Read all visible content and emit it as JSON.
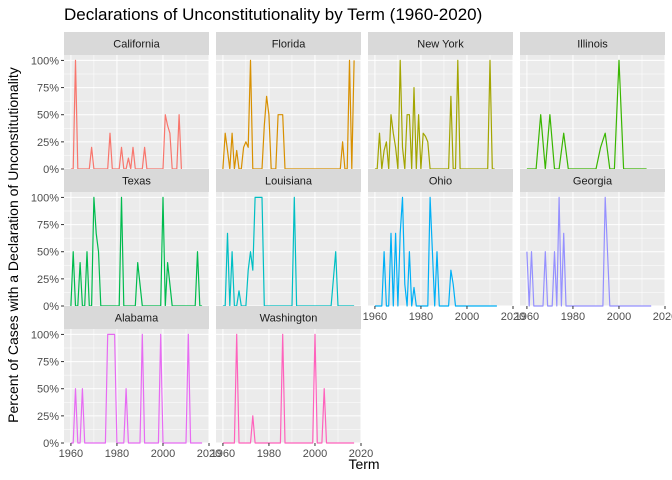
{
  "chart_data": {
    "type": "line",
    "title": "Declarations of Unconstitutionality by Term (1960-2020)",
    "xlabel": "Term",
    "ylabel": "Percent of Cases with a Declaration of Unconstitutionality",
    "xlim": [
      1957,
      2020
    ],
    "ylim": [
      0,
      1.05
    ],
    "x_ticks": [
      1960,
      1980,
      2000,
      2020
    ],
    "x_tick_labels": [
      "1960",
      "1980",
      "2000",
      "2020"
    ],
    "y_ticks": [
      0,
      0.25,
      0.5,
      0.75,
      1.0
    ],
    "y_tick_labels": [
      "0%",
      "25%",
      "50%",
      "75%",
      "100%"
    ],
    "grid": true,
    "legend": "none",
    "series": [
      {
        "name": "California",
        "color": "#F8766D",
        "x": [
          1960,
          1961,
          1962,
          1963,
          1964,
          1965,
          1966,
          1967,
          1968,
          1969,
          1970,
          1971,
          1972,
          1973,
          1974,
          1975,
          1976,
          1977,
          1978,
          1979,
          1980,
          1981,
          1982,
          1983,
          1984,
          1985,
          1986,
          1987,
          1988,
          1989,
          1990,
          1991,
          1992,
          1993,
          1994,
          1995,
          1996,
          1997,
          1998,
          1999,
          2000,
          2001,
          2002,
          2003,
          2004,
          2005,
          2006,
          2007,
          2008
        ],
        "y": [
          0,
          0,
          1.0,
          0,
          0,
          0,
          0,
          0,
          0,
          0.2,
          0,
          0,
          0,
          0,
          0,
          0,
          0,
          0.33,
          0,
          0,
          0,
          0,
          0.2,
          0,
          0,
          0.1,
          0,
          0.2,
          0,
          0,
          0,
          0,
          0.2,
          0,
          0,
          0,
          0,
          0,
          0,
          0,
          0,
          0.5,
          0.4,
          0.33,
          0,
          0,
          0,
          0.5,
          0
        ]
      },
      {
        "name": "Florida",
        "color": "#D89000",
        "x": [
          1960,
          1961,
          1962,
          1963,
          1964,
          1965,
          1966,
          1967,
          1968,
          1969,
          1970,
          1971,
          1972,
          1973,
          1974,
          1975,
          1976,
          1977,
          1978,
          1979,
          1980,
          1981,
          1982,
          1983,
          1984,
          1985,
          1986,
          1987,
          1988,
          1989,
          1990,
          1991,
          1992,
          1993,
          1994,
          1995,
          1996,
          1997,
          1998,
          1999,
          2000,
          2001,
          2002,
          2003,
          2004,
          2005,
          2006,
          2007,
          2008,
          2009,
          2010,
          2011,
          2012,
          2013,
          2014,
          2015,
          2016,
          2017
        ],
        "y": [
          0,
          0.33,
          0.17,
          0,
          0.33,
          0,
          0.17,
          0,
          0,
          0.2,
          0.25,
          0.2,
          1.0,
          0,
          0,
          0,
          0,
          0,
          0.4,
          0.67,
          0.5,
          0,
          0,
          0,
          0.5,
          0.5,
          0.5,
          0,
          0,
          0,
          0,
          0,
          0,
          0,
          0,
          0,
          0,
          0,
          0,
          0,
          0,
          0,
          0,
          0,
          0,
          0,
          0,
          0,
          0,
          0,
          0,
          0,
          0.25,
          0,
          0,
          1.0,
          0,
          1.0
        ]
      },
      {
        "name": "New York",
        "color": "#A3A500",
        "x": [
          1960,
          1961,
          1962,
          1963,
          1964,
          1965,
          1966,
          1967,
          1968,
          1969,
          1970,
          1971,
          1972,
          1973,
          1974,
          1975,
          1976,
          1977,
          1978,
          1979,
          1980,
          1981,
          1982,
          1983,
          1984,
          1985,
          1986,
          1987,
          1988,
          1989,
          1990,
          1991,
          1992,
          1993,
          1994,
          1995,
          1996,
          1997,
          1998,
          1999,
          2000,
          2001,
          2002,
          2003,
          2004,
          2005,
          2006,
          2007,
          2008,
          2009,
          2010,
          2011,
          2012
        ],
        "y": [
          0,
          0,
          0.33,
          0,
          0.17,
          0.25,
          0,
          0.5,
          0.33,
          0.2,
          0,
          1.0,
          0.2,
          0,
          0.5,
          0.5,
          0,
          0.75,
          0,
          0.5,
          0,
          0.33,
          0.3,
          0.25,
          0,
          0,
          0,
          0,
          0,
          0,
          0,
          0,
          0,
          0.67,
          0,
          0,
          1.0,
          0,
          0,
          0,
          0,
          0,
          0,
          0,
          0,
          0,
          0,
          0,
          0,
          0,
          1.0,
          0,
          0
        ]
      },
      {
        "name": "Illinois",
        "color": "#39B600",
        "x": [
          1960,
          1962,
          1964,
          1966,
          1968,
          1970,
          1972,
          1974,
          1976,
          1978,
          1980,
          1982,
          1984,
          1986,
          1988,
          1990,
          1992,
          1994,
          1996,
          1998,
          2000,
          2002,
          2004,
          2006,
          2008,
          2010,
          2012
        ],
        "y": [
          0,
          0,
          0,
          0.5,
          0,
          0.5,
          0,
          0,
          0.33,
          0,
          0,
          0,
          0,
          0,
          0,
          0,
          0.2,
          0.33,
          0,
          0,
          1.0,
          0,
          0,
          0,
          0,
          0,
          0
        ]
      },
      {
        "name": "Texas",
        "color": "#00BB4E",
        "x": [
          1960,
          1961,
          1962,
          1963,
          1964,
          1965,
          1966,
          1967,
          1968,
          1969,
          1970,
          1971,
          1972,
          1973,
          1974,
          1975,
          1976,
          1977,
          1978,
          1979,
          1980,
          1981,
          1982,
          1983,
          1984,
          1985,
          1986,
          1987,
          1988,
          1989,
          1990,
          1991,
          1992,
          1993,
          1994,
          1995,
          1996,
          1997,
          1998,
          1999,
          2000,
          2001,
          2002,
          2003,
          2004,
          2005,
          2006,
          2007,
          2008,
          2009,
          2010,
          2011,
          2012,
          2013,
          2014,
          2015,
          2016,
          2017
        ],
        "y": [
          0,
          0.5,
          0,
          0,
          0.4,
          0,
          0,
          0.5,
          0,
          0,
          1.0,
          0.67,
          0.5,
          0,
          0,
          0,
          0,
          0,
          0,
          0,
          0,
          0,
          1.0,
          0,
          0,
          0,
          0,
          0,
          0,
          0.4,
          0.2,
          0,
          0,
          0,
          0,
          0,
          0,
          0,
          0,
          0,
          1.0,
          0,
          0.4,
          0.2,
          0,
          0,
          0,
          0,
          0,
          0,
          0,
          0,
          0,
          0,
          0,
          0.5,
          0,
          0
        ]
      },
      {
        "name": "Louisiana",
        "color": "#00BFC4",
        "x": [
          1960,
          1961,
          1962,
          1963,
          1964,
          1965,
          1966,
          1967,
          1968,
          1969,
          1970,
          1971,
          1972,
          1973,
          1974,
          1975,
          1976,
          1977,
          1978,
          1979,
          1980,
          1981,
          1982,
          1983,
          1984,
          1985,
          1986,
          1987,
          1988,
          1989,
          1990,
          1991,
          1992,
          1993,
          1994,
          1995,
          1996,
          1997,
          1998,
          1999,
          2000,
          2001,
          2002,
          2003,
          2004,
          2005,
          2006,
          2007,
          2008,
          2009,
          2010,
          2011,
          2012,
          2013,
          2014,
          2015,
          2016,
          2017
        ],
        "y": [
          0,
          0,
          0.67,
          0,
          0.5,
          0,
          0,
          0.14,
          0,
          0,
          0,
          0.33,
          0.5,
          0.33,
          1.0,
          1.0,
          1.0,
          1.0,
          0,
          0,
          0,
          0,
          0,
          0,
          0,
          0,
          0,
          0,
          0,
          0,
          0,
          1.0,
          0,
          0,
          0,
          0,
          0,
          0,
          0,
          0,
          0,
          0,
          0,
          0,
          0,
          0,
          0,
          0,
          0.25,
          0.5,
          0,
          0,
          0,
          0,
          0,
          0,
          0,
          0
        ]
      },
      {
        "name": "Ohio",
        "color": "#00B0F6",
        "x": [
          1960,
          1961,
          1962,
          1963,
          1964,
          1965,
          1966,
          1967,
          1968,
          1969,
          1970,
          1971,
          1972,
          1973,
          1974,
          1975,
          1976,
          1977,
          1978,
          1979,
          1980,
          1981,
          1982,
          1983,
          1984,
          1985,
          1986,
          1987,
          1988,
          1989,
          1990,
          1991,
          1992,
          1993,
          1994,
          1995,
          1996,
          1997,
          1998,
          1999,
          2000,
          2001,
          2002,
          2003,
          2004,
          2005,
          2006,
          2007,
          2008,
          2009,
          2010,
          2011,
          2012,
          2013
        ],
        "y": [
          0,
          0,
          0,
          0,
          0.5,
          0,
          0,
          0.67,
          0,
          0.67,
          0,
          0.67,
          1.0,
          0.2,
          0,
          0.5,
          0,
          0.17,
          0,
          0,
          0,
          0,
          0,
          0,
          1.0,
          0.5,
          0,
          0.5,
          0,
          0,
          0,
          0,
          0,
          0.33,
          0.2,
          0,
          0,
          0,
          0,
          0,
          0,
          0,
          0,
          0,
          0,
          0,
          0,
          0,
          0,
          0,
          0,
          0,
          0,
          0
        ]
      },
      {
        "name": "Georgia",
        "color": "#9590FF",
        "x": [
          1960,
          1961,
          1962,
          1963,
          1964,
          1965,
          1966,
          1967,
          1968,
          1969,
          1970,
          1971,
          1972,
          1973,
          1974,
          1975,
          1976,
          1977,
          1978,
          1979,
          1980,
          1981,
          1982,
          1983,
          1984,
          1985,
          1986,
          1987,
          1988,
          1989,
          1990,
          1991,
          1992,
          1993,
          1994,
          1995,
          1996,
          1997,
          1998,
          1999,
          2000,
          2001,
          2002,
          2003,
          2004,
          2005,
          2006,
          2007,
          2008,
          2009,
          2010,
          2011,
          2012,
          2013,
          2014
        ],
        "y": [
          0.5,
          0,
          0.5,
          0,
          0,
          0,
          0,
          0,
          0.5,
          0,
          0,
          0,
          0.5,
          0,
          1.0,
          0,
          0.67,
          0,
          0,
          0,
          0,
          0,
          0,
          0,
          0,
          0,
          0,
          0,
          0,
          0,
          0,
          0,
          0,
          0,
          1.0,
          0.5,
          0,
          0,
          0,
          0,
          0,
          0,
          0,
          0,
          0,
          0,
          0,
          0,
          0,
          0,
          0,
          0,
          0,
          0,
          0
        ]
      },
      {
        "name": "Alabama",
        "color": "#E76BF3",
        "x": [
          1960,
          1961,
          1962,
          1963,
          1964,
          1965,
          1966,
          1967,
          1968,
          1969,
          1970,
          1971,
          1972,
          1973,
          1974,
          1975,
          1976,
          1977,
          1978,
          1979,
          1980,
          1981,
          1982,
          1983,
          1984,
          1985,
          1986,
          1987,
          1988,
          1989,
          1990,
          1991,
          1992,
          1993,
          1994,
          1995,
          1996,
          1997,
          1998,
          1999,
          2000,
          2001,
          2002,
          2003,
          2004,
          2005,
          2006,
          2007,
          2008,
          2009,
          2010,
          2011,
          2012,
          2013,
          2014,
          2015,
          2016,
          2017
        ],
        "y": [
          0,
          0,
          0.5,
          0,
          0,
          0.5,
          0,
          0,
          0,
          0,
          0,
          0,
          0,
          0,
          0,
          0,
          1.0,
          1.0,
          1.0,
          1.0,
          0,
          0,
          0,
          0,
          0.5,
          0,
          0,
          0,
          0,
          0,
          0,
          1.0,
          0,
          0,
          0,
          0,
          0,
          0,
          0,
          1.0,
          0,
          0,
          0,
          0,
          0,
          0,
          0,
          0,
          0,
          0,
          0,
          1.0,
          0,
          0,
          0,
          0,
          0,
          0
        ]
      },
      {
        "name": "Washington",
        "color": "#FF62BC",
        "x": [
          1960,
          1961,
          1962,
          1963,
          1964,
          1965,
          1966,
          1967,
          1968,
          1969,
          1970,
          1971,
          1972,
          1973,
          1974,
          1975,
          1976,
          1977,
          1978,
          1979,
          1980,
          1981,
          1982,
          1983,
          1984,
          1985,
          1986,
          1987,
          1988,
          1989,
          1990,
          1991,
          1992,
          1993,
          1994,
          1995,
          1996,
          1997,
          1998,
          1999,
          2000,
          2001,
          2002,
          2003,
          2004,
          2005,
          2006,
          2007,
          2008,
          2009,
          2010,
          2011,
          2012,
          2013,
          2014,
          2015,
          2016,
          2017
        ],
        "y": [
          0,
          0,
          0,
          0,
          0,
          0,
          1.0,
          0,
          0,
          0,
          0,
          0,
          0,
          0.25,
          0,
          0,
          0,
          0,
          0,
          0,
          0,
          0,
          0,
          0,
          0,
          0,
          1.0,
          0,
          0,
          0,
          0,
          0,
          0,
          0,
          0,
          0,
          0,
          0,
          0,
          0,
          1.0,
          0,
          0,
          0,
          0.5,
          0,
          0,
          0,
          0,
          0,
          0,
          0,
          0,
          0,
          0,
          0,
          0,
          0
        ]
      }
    ]
  }
}
